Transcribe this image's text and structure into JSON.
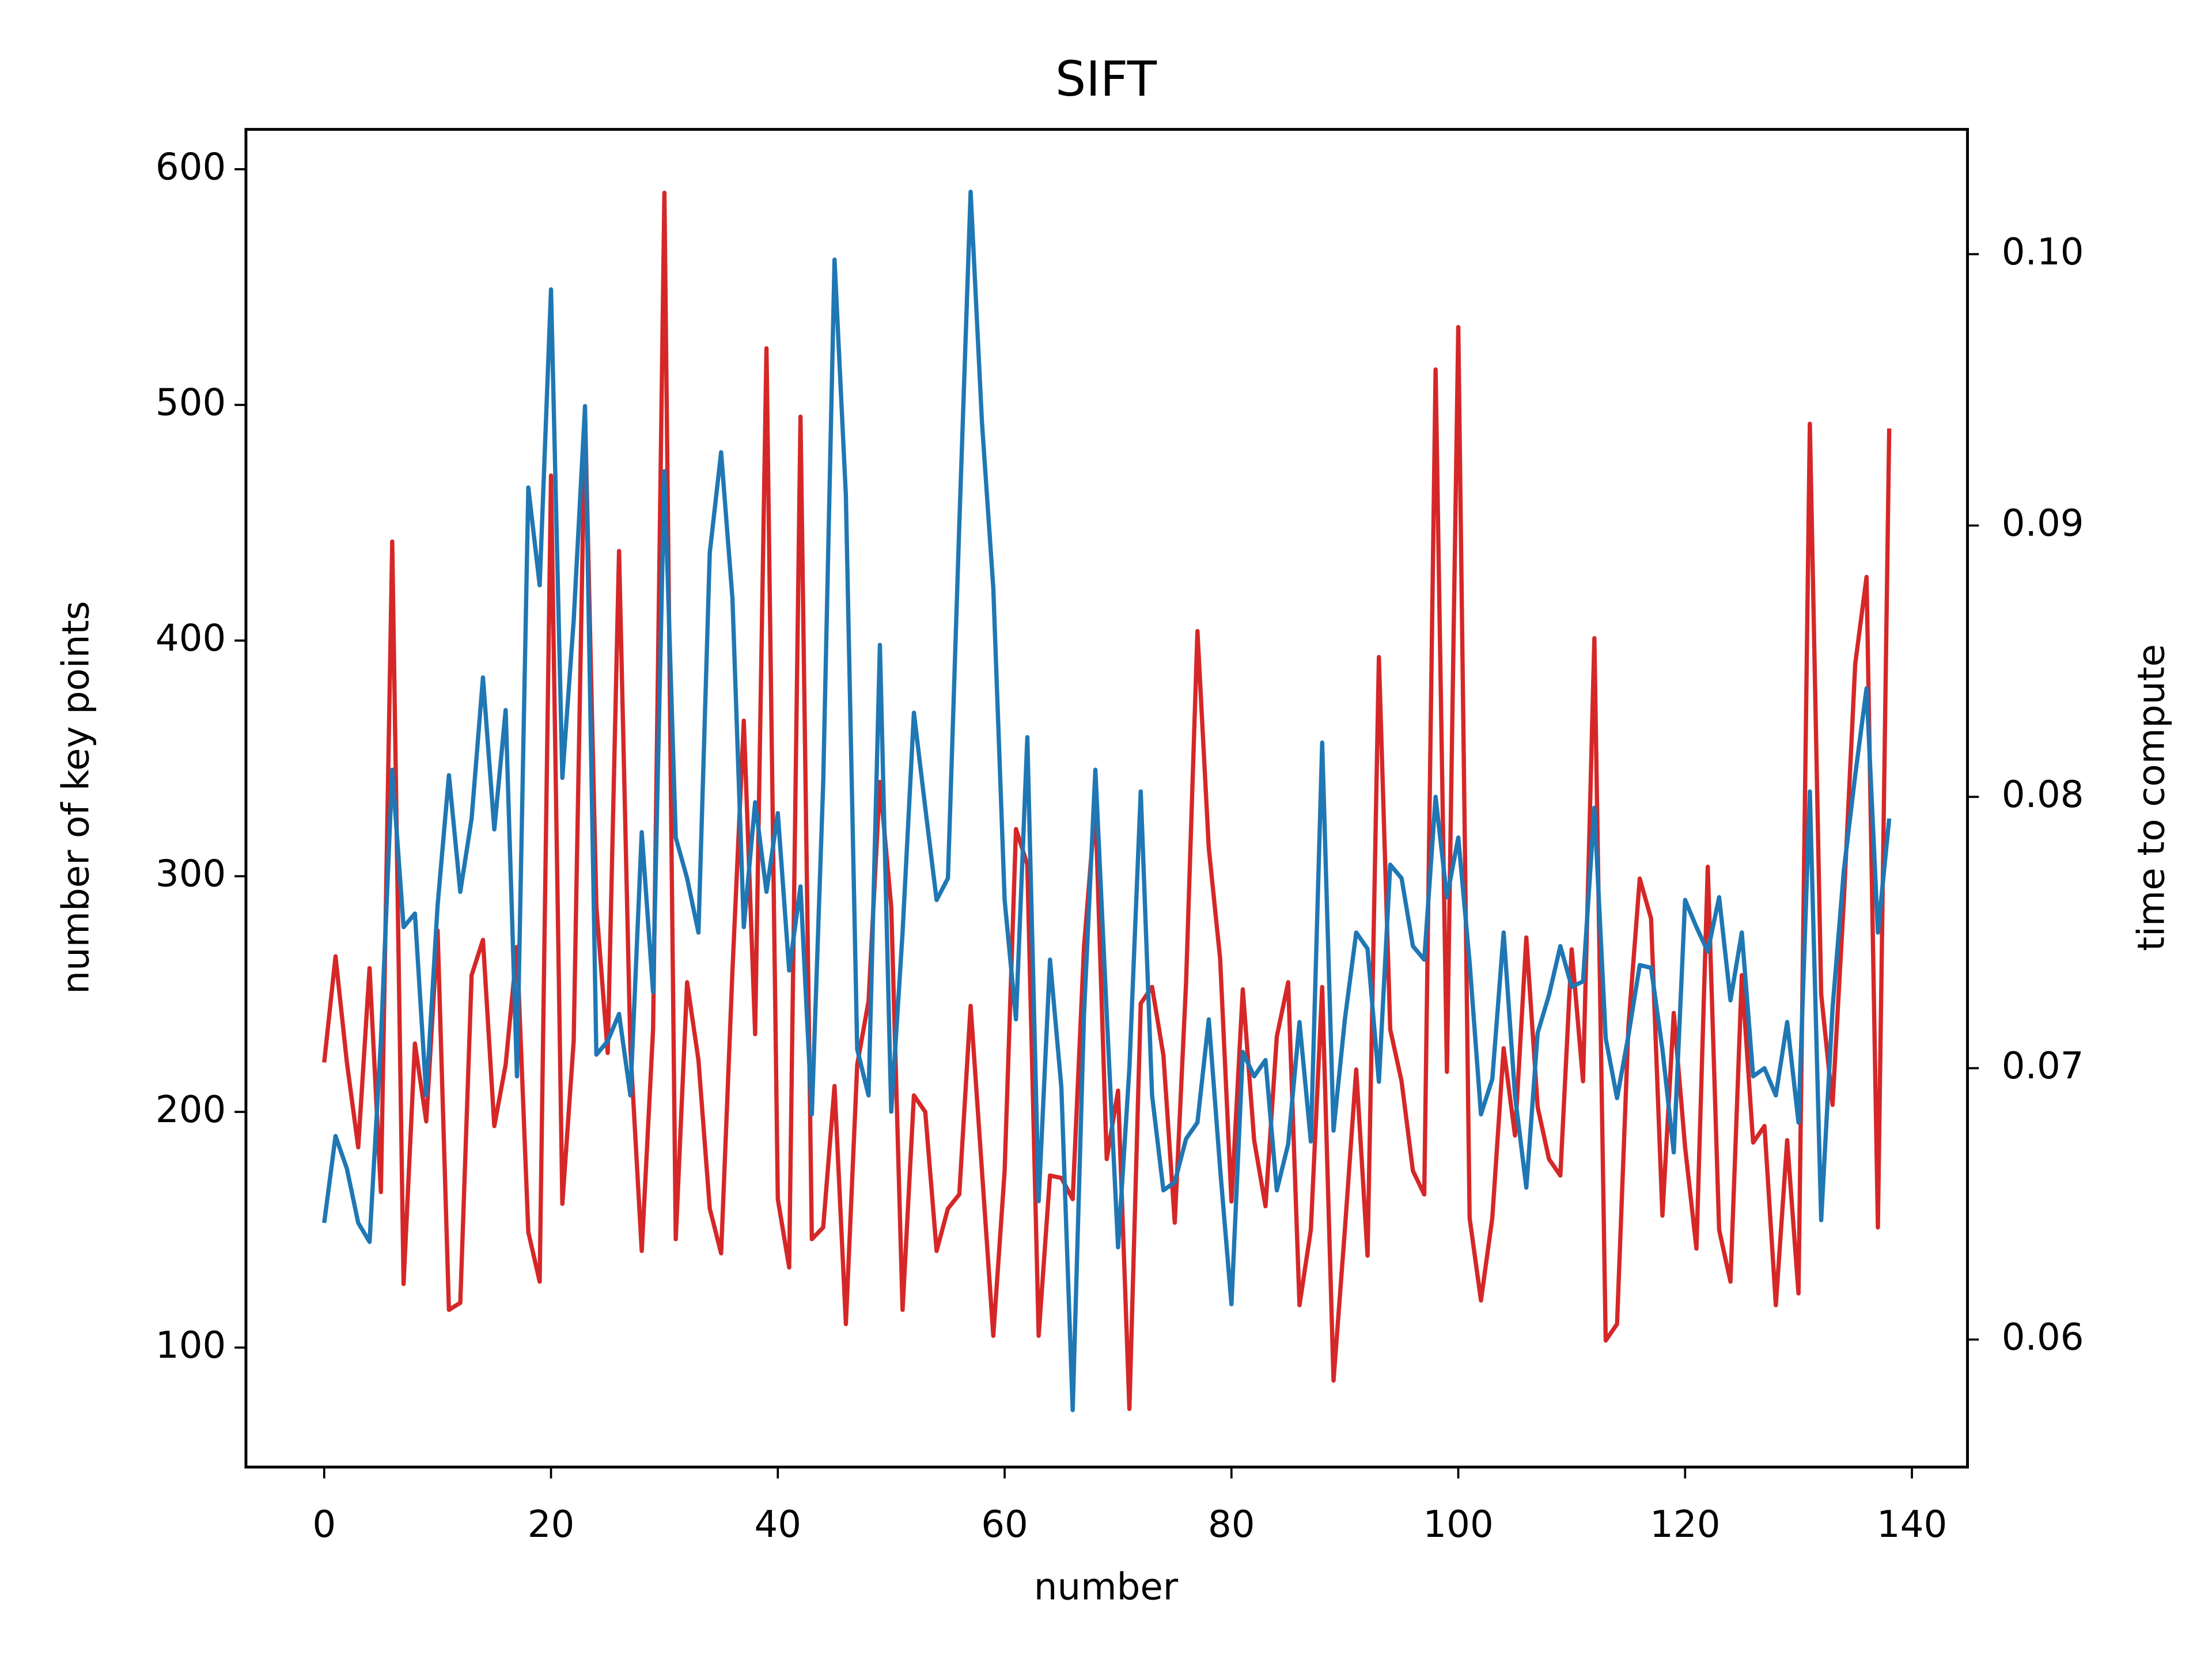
{
  "chart_data": {
    "type": "line",
    "title": "SIFT",
    "xlabel": "number",
    "ylabel": "number of key points",
    "y2label": "time to compute",
    "x": [
      0,
      1,
      2,
      3,
      4,
      5,
      6,
      7,
      8,
      9,
      10,
      11,
      12,
      13,
      14,
      15,
      16,
      17,
      18,
      19,
      20,
      21,
      22,
      23,
      24,
      25,
      26,
      27,
      28,
      29,
      30,
      31,
      32,
      33,
      34,
      35,
      36,
      37,
      38,
      39,
      40,
      41,
      42,
      43,
      44,
      45,
      46,
      47,
      48,
      49,
      50,
      51,
      52,
      53,
      54,
      55,
      56,
      57,
      58,
      59,
      60,
      61,
      62,
      63,
      64,
      65,
      66,
      67,
      68,
      69,
      70,
      71,
      72,
      73,
      74,
      75,
      76,
      77,
      78,
      79,
      80,
      81,
      82,
      83,
      84,
      85,
      86,
      87,
      88,
      89,
      90,
      91,
      92,
      93,
      94,
      95,
      96,
      97,
      98,
      99,
      100,
      101,
      102,
      103,
      104,
      105,
      106,
      107,
      108,
      109,
      110,
      111,
      112,
      113,
      114,
      115,
      116,
      117,
      118,
      119,
      120,
      121,
      122,
      123,
      124,
      125,
      126,
      127,
      128,
      129,
      130,
      131,
      132,
      133,
      134,
      135,
      136,
      137,
      138
    ],
    "series": [
      {
        "color": "#d62728",
        "axis": "y",
        "values": [
          221,
          266,
          221,
          185,
          261,
          166,
          442,
          127,
          229,
          196,
          277,
          116,
          119,
          258,
          273,
          194,
          220,
          270,
          149,
          128,
          470,
          161,
          230,
          497,
          287,
          225,
          438,
          227,
          141,
          235,
          590,
          146,
          255,
          222,
          159,
          140,
          260,
          366,
          233,
          524,
          163,
          134,
          495,
          146,
          151,
          211,
          110,
          220,
          247,
          340,
          287,
          116,
          207,
          200,
          141,
          159,
          165,
          245,
          175,
          105,
          175,
          320,
          305,
          105,
          173,
          172,
          163,
          270,
          330,
          180,
          209,
          74,
          246,
          253,
          224,
          153,
          255,
          404,
          312,
          265,
          162,
          252,
          188,
          160,
          232,
          255,
          118,
          150,
          253,
          86,
          150,
          218,
          139,
          393,
          235,
          213,
          175,
          165,
          515,
          217,
          533,
          155,
          120,
          155,
          227,
          190,
          274,
          202,
          180,
          173,
          269,
          213,
          401,
          103,
          110,
          236,
          299,
          282,
          156,
          242,
          185,
          142,
          304,
          150,
          128,
          258,
          187,
          194,
          118,
          188,
          123,
          492,
          250,
          203,
          290,
          390,
          427,
          151,
          490
        ]
      },
      {
        "color": "#1f77b4",
        "axis": "y2",
        "values": [
          0.0643,
          0.0675,
          0.0663,
          0.0643,
          0.0636,
          0.071,
          0.081,
          0.0752,
          0.0757,
          0.069,
          0.076,
          0.0808,
          0.0765,
          0.0792,
          0.0844,
          0.0788,
          0.0832,
          0.0697,
          0.0914,
          0.0878,
          0.0987,
          0.0807,
          0.0865,
          0.0944,
          0.0705,
          0.071,
          0.072,
          0.069,
          0.0787,
          0.0728,
          0.092,
          0.0785,
          0.077,
          0.075,
          0.089,
          0.0927,
          0.0873,
          0.0752,
          0.0798,
          0.0765,
          0.0794,
          0.0736,
          0.0767,
          0.0683,
          0.0805,
          0.0998,
          0.0911,
          0.0707,
          0.069,
          0.0856,
          0.0684,
          0.075,
          0.0831,
          0.0796,
          0.0762,
          0.077,
          0.09,
          0.1023,
          0.0938,
          0.0877,
          0.0762,
          0.0718,
          0.0822,
          0.0651,
          0.074,
          0.0693,
          0.0574,
          0.072,
          0.081,
          0.072,
          0.0634,
          0.07,
          0.0802,
          0.069,
          0.0655,
          0.0658,
          0.0674,
          0.068,
          0.0718,
          0.0663,
          0.0613,
          0.0706,
          0.0697,
          0.0703,
          0.0655,
          0.0672,
          0.0717,
          0.0673,
          0.082,
          0.0677,
          0.0718,
          0.075,
          0.0744,
          0.0695,
          0.0775,
          0.077,
          0.0745,
          0.074,
          0.08,
          0.0763,
          0.0785,
          0.0739,
          0.0683,
          0.0696,
          0.075,
          0.069,
          0.0656,
          0.0713,
          0.0727,
          0.0745,
          0.073,
          0.0732,
          0.0796,
          0.0711,
          0.0689,
          0.0712,
          0.0738,
          0.0737,
          0.0707,
          0.0669,
          0.0762,
          0.0752,
          0.0743,
          0.0763,
          0.0725,
          0.075,
          0.0697,
          0.07,
          0.069,
          0.0717,
          0.068,
          0.0802,
          0.0644,
          0.0722,
          0.0773,
          0.0808,
          0.084,
          0.075,
          0.0792
        ]
      }
    ],
    "xlim": [
      -6.9,
      144.9
    ],
    "xticks": [
      0,
      20,
      40,
      60,
      80,
      100,
      120,
      140
    ],
    "ylim": [
      49.3,
      616.9
    ],
    "yticks": [
      100,
      200,
      300,
      400,
      500,
      600
    ],
    "y2lim": [
      0.0553,
      0.1046
    ],
    "y2ticks": [
      0.06,
      0.07,
      0.08,
      0.09,
      {
        "value": 0.1,
        "label": "0.10"
      }
    ]
  }
}
